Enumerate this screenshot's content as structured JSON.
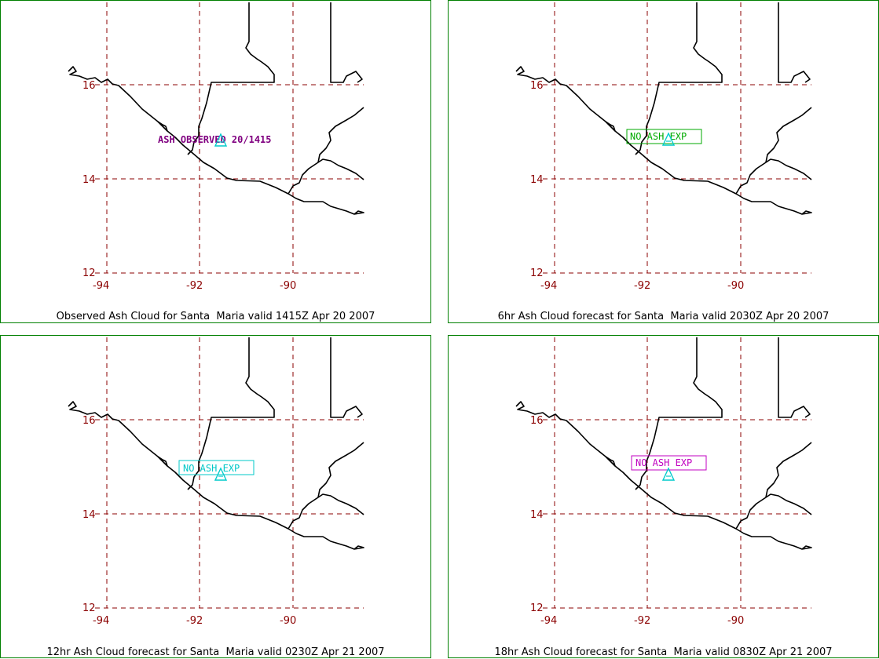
{
  "colors": {
    "border": "#008000",
    "grid": "#8b0000",
    "tick_labels": "#8b0000",
    "coastline": "#000000",
    "volcano_marker": "#00cccc"
  },
  "icons": {
    "volcano": "volcano-triangle-icon"
  },
  "panels": [
    {
      "caption": "Observed Ash Cloud for Santa  Maria valid 1415Z Apr 20 2007",
      "lat_labels": [
        "16",
        "14",
        "12"
      ],
      "lon_labels": [
        "-94",
        "-92",
        "-90"
      ],
      "ash_label": {
        "text": "ASH OBSERVED 20/1415",
        "color": "#800080",
        "boxed": false,
        "font": "bold"
      }
    },
    {
      "caption": "6hr Ash Cloud forecast for Santa  Maria valid 2030Z Apr 20 2007",
      "lat_labels": [
        "16",
        "14",
        "12"
      ],
      "lon_labels": [
        "-94",
        "-92",
        "-90"
      ],
      "ash_label": {
        "text": "NO ASH  EXP",
        "color": "#00aa00",
        "boxed": true,
        "font": "mono"
      }
    },
    {
      "caption": "12hr Ash Cloud forecast for Santa  Maria valid 0230Z Apr 21 2007",
      "lat_labels": [
        "16",
        "14",
        "12"
      ],
      "lon_labels": [
        "-94",
        "-92",
        "-90"
      ],
      "ash_label": {
        "text": "NO  ASH  EXP",
        "color": "#00c8c8",
        "boxed": true,
        "font": "mono"
      }
    },
    {
      "caption": "18hr Ash Cloud forecast for Santa  Maria valid 0830Z Apr 21 2007",
      "lat_labels": [
        "16",
        "14",
        "12"
      ],
      "lon_labels": [
        "-94",
        "-92",
        "-90"
      ],
      "ash_label": {
        "text": "NO  ASH  EXP",
        "color": "#c000c0",
        "boxed": true,
        "font": "mono"
      }
    }
  ]
}
